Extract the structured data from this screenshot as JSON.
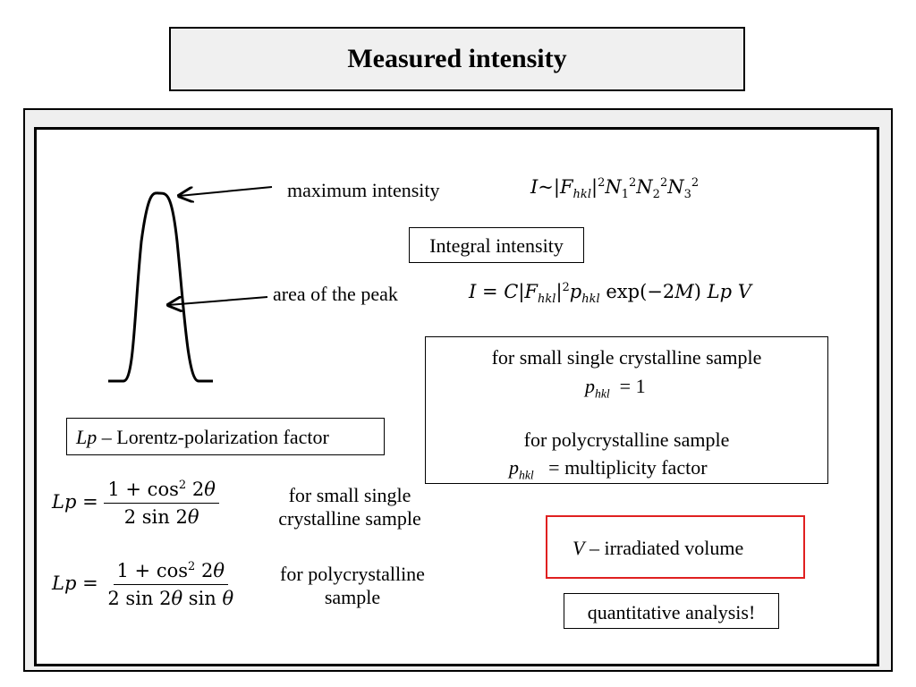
{
  "title": "Measured intensity",
  "labels": {
    "maximum_intensity": "maximum intensity",
    "area_of_peak": "area of the peak",
    "integral_intensity": "Integral intensity",
    "lp_symbol": "Lp",
    "lp_definition": " – Lorentz-polarization factor",
    "small_single_line1": "for small single",
    "small_single_line2": "crystalline sample",
    "poly_line1": "for polycrystalline",
    "poly_line2": "sample",
    "v_symbol": "V",
    "v_definition": " – irradiated volume",
    "quantitative": "quantitative analysis!"
  },
  "phkl_box": {
    "small_title": "for small single crystalline sample",
    "small_value": "=  1",
    "poly_title": "for polycrystalline sample",
    "poly_value": "=  multiplicity factor"
  },
  "colors": {
    "highlight_border": "#e02020"
  }
}
